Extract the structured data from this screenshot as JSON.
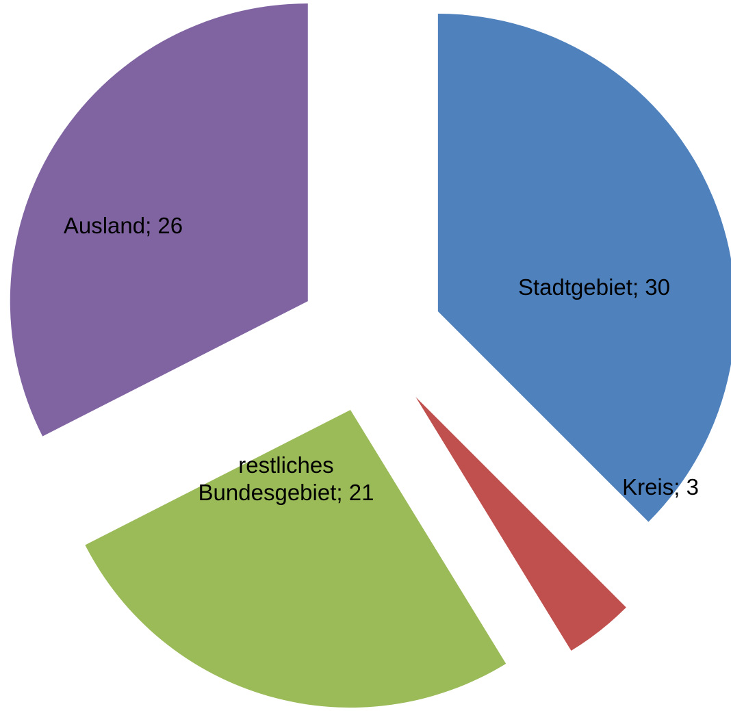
{
  "chart_data": {
    "type": "pie",
    "categories": [
      "Stadtgebiet",
      "Kreis",
      "restliches Bundesgebiet",
      "Ausland"
    ],
    "values": [
      30,
      3,
      21,
      26
    ],
    "value_labels": [
      "Stadtgebiet; 30",
      "Kreis; 3",
      "restliches Bundesgebiet; 21",
      "Ausland; 26"
    ],
    "colors": [
      "#4f81bd",
      "#c0504d",
      "#9bbb59",
      "#8064a2"
    ]
  }
}
